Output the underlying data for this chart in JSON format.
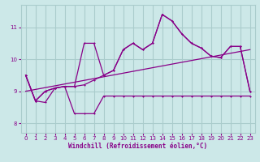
{
  "bg_color": "#cce8e8",
  "grid_color": "#aacccc",
  "line_color": "#880088",
  "xlabel": "Windchill (Refroidissement éolien,°C)",
  "xlim": [
    -0.5,
    23.5
  ],
  "ylim": [
    7.7,
    11.7
  ],
  "xticks": [
    0,
    1,
    2,
    3,
    4,
    5,
    6,
    7,
    8,
    9,
    10,
    11,
    12,
    13,
    14,
    15,
    16,
    17,
    18,
    19,
    20,
    21,
    22,
    23
  ],
  "yticks": [
    8,
    9,
    10,
    11
  ],
  "hours": [
    0,
    1,
    2,
    3,
    4,
    5,
    6,
    7,
    8,
    9,
    10,
    11,
    12,
    13,
    14,
    15,
    16,
    17,
    18,
    19,
    20,
    21,
    22,
    23
  ],
  "actual": [
    9.5,
    8.7,
    9.0,
    9.1,
    9.15,
    9.15,
    9.2,
    9.35,
    9.5,
    9.65,
    10.3,
    10.5,
    10.3,
    10.5,
    11.4,
    11.2,
    10.8,
    10.5,
    10.35,
    10.1,
    10.05,
    10.4,
    10.4,
    9.0
  ],
  "upper": [
    9.5,
    8.7,
    9.0,
    9.1,
    9.15,
    9.15,
    10.5,
    10.5,
    9.5,
    9.65,
    10.3,
    10.5,
    10.3,
    10.5,
    11.4,
    11.2,
    10.8,
    10.5,
    10.35,
    10.1,
    10.05,
    10.4,
    10.4,
    9.0
  ],
  "lower": [
    9.5,
    8.7,
    8.65,
    9.1,
    9.15,
    8.3,
    8.3,
    8.3,
    8.85,
    8.85,
    8.85,
    8.85,
    8.85,
    8.85,
    8.85,
    8.85,
    8.85,
    8.85,
    8.85,
    8.85,
    8.85,
    8.85,
    8.85,
    8.85
  ],
  "trend_x": [
    0,
    23
  ],
  "trend_y": [
    9.0,
    10.3
  ]
}
